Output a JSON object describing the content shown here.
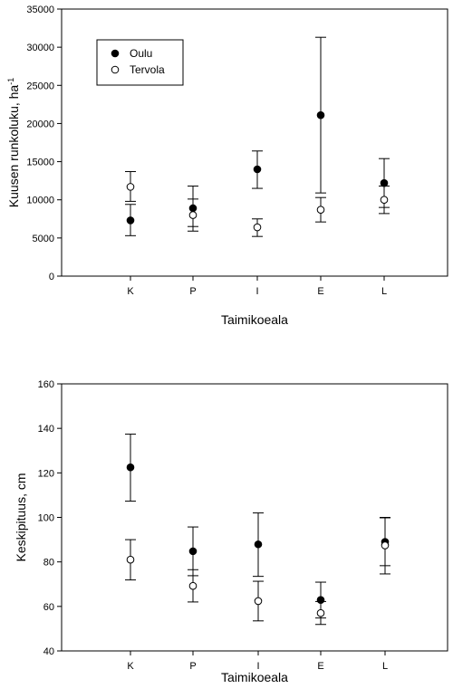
{
  "chart_data": [
    {
      "type": "scatter",
      "title": "",
      "xlabel": "Taimikoeala",
      "ylabel": "Kuusen runkoluku, ha",
      "ylabel_superscript": "-1",
      "categories": [
        "K",
        "P",
        "I",
        "E",
        "L"
      ],
      "ylim": [
        0,
        35000
      ],
      "yticks": [
        0,
        5000,
        10000,
        15000,
        20000,
        25000,
        30000,
        35000
      ],
      "ytick_labels": [
        "0",
        "5000",
        "10000",
        "15000",
        "20000",
        "25000",
        "30000",
        "35000"
      ],
      "grid": false,
      "legend": "top-left",
      "error_bars": true,
      "series": [
        {
          "name": "Oulu",
          "marker": "filled-circle",
          "values": [
            7300,
            8900,
            14000,
            21100,
            12200
          ],
          "lower": [
            5300,
            6500,
            11500,
            10900,
            9000
          ],
          "upper": [
            9400,
            11800,
            16400,
            31300,
            15400
          ]
        },
        {
          "name": "Tervola",
          "marker": "open-circle",
          "values": [
            11700,
            8000,
            6400,
            8700,
            10000
          ],
          "lower": [
            9800,
            5900,
            5200,
            7100,
            8200
          ],
          "upper": [
            13700,
            10100,
            7500,
            10300,
            11800
          ]
        }
      ]
    },
    {
      "type": "scatter",
      "title": "",
      "xlabel": "Taimikoeala",
      "ylabel": "Keskipituus, cm",
      "categories": [
        "K",
        "P",
        "I",
        "E",
        "L"
      ],
      "ylim": [
        40,
        160
      ],
      "yticks": [
        40,
        60,
        80,
        100,
        120,
        140,
        160
      ],
      "ytick_labels": [
        "40",
        "60",
        "80",
        "100",
        "120",
        "140",
        "160"
      ],
      "grid": false,
      "legend": "none",
      "error_bars": true,
      "series": [
        {
          "name": "Oulu",
          "marker": "filled-circle",
          "values": [
            122.5,
            84.8,
            87.9,
            62.9,
            89.0
          ],
          "lower": [
            107.3,
            73.8,
            73.5,
            54.8,
            78.3
          ],
          "upper": [
            137.4,
            95.7,
            102.0,
            70.9,
            99.8
          ]
        },
        {
          "name": "Tervola",
          "marker": "open-circle",
          "values": [
            81.0,
            69.2,
            62.4,
            57.0,
            87.4
          ],
          "lower": [
            71.9,
            62.0,
            53.5,
            51.9,
            74.6
          ],
          "upper": [
            90.0,
            76.5,
            71.3,
            62.2,
            100.0
          ]
        }
      ]
    }
  ]
}
